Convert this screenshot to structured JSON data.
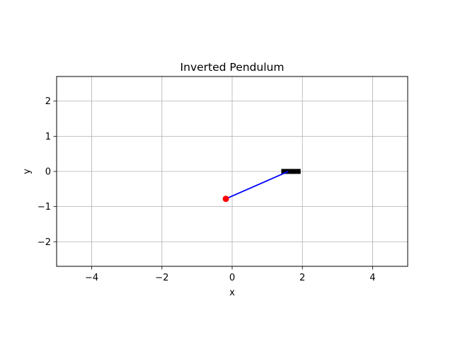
{
  "chart_data": {
    "type": "scatter",
    "title": "Inverted Pendulum",
    "xlabel": "x",
    "ylabel": "y",
    "xlim": [
      -5,
      5
    ],
    "ylim": [
      -2.7,
      2.7
    ],
    "xticks": [
      -4,
      -2,
      0,
      2,
      4
    ],
    "xtick_labels": [
      "−4",
      "−2",
      "0",
      "2",
      "4"
    ],
    "yticks": [
      -2,
      -1,
      0,
      1,
      2
    ],
    "ytick_labels": [
      "−2",
      "−1",
      "0",
      "1",
      "2"
    ],
    "grid": true,
    "cart": {
      "x_start": 1.4,
      "x_end": 1.95,
      "y": 0,
      "color": "#000000"
    },
    "pole": {
      "x": [
        1.6,
        -0.18
      ],
      "y": [
        0,
        -0.78
      ],
      "color": "#0000ff"
    },
    "bob": {
      "x": -0.18,
      "y": -0.78,
      "color": "#ff0000"
    }
  }
}
